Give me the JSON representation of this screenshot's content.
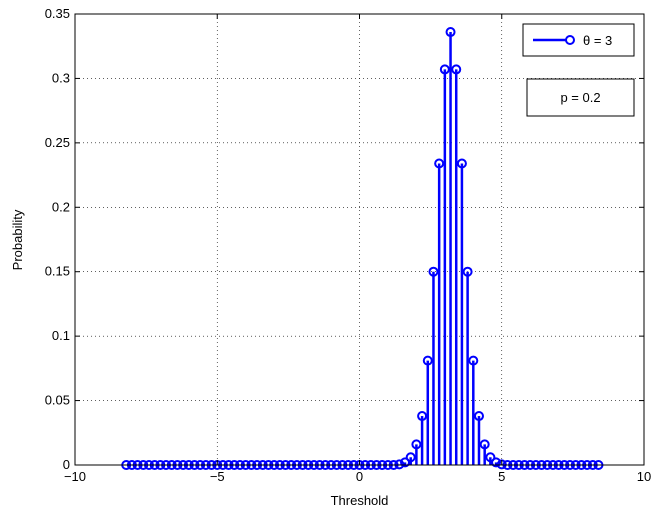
{
  "chart_data": {
    "type": "stem",
    "title": "",
    "xlabel": "Threshold",
    "ylabel": "Probability",
    "xlim": [
      -10,
      10
    ],
    "ylim": [
      0,
      0.35
    ],
    "x_ticks": [
      -10,
      -5,
      0,
      5,
      10
    ],
    "x_tick_labels": [
      "−10",
      "−5",
      "0",
      "5",
      "10"
    ],
    "y_ticks": [
      0,
      0.05,
      0.1,
      0.15,
      0.2,
      0.25,
      0.3,
      0.35
    ],
    "y_tick_labels": [
      "0",
      "0.05",
      "0.1",
      "0.15",
      "0.2",
      "0.25",
      "0.3",
      "0.35"
    ],
    "grid": true,
    "grid_style": "dotted",
    "legend_position": "top-right",
    "series": [
      {
        "name": "θ = 3",
        "color": "#0000ff",
        "marker": "open-circle",
        "x": [
          -8.2,
          -8.0,
          -7.8,
          -7.6,
          -7.4,
          -7.2,
          -7.0,
          -6.8,
          -6.6,
          -6.4,
          -6.2,
          -6.0,
          -5.8,
          -5.6,
          -5.4,
          -5.2,
          -5.0,
          -4.8,
          -4.6,
          -4.4,
          -4.2,
          -4.0,
          -3.8,
          -3.6,
          -3.4,
          -3.2,
          -3.0,
          -2.8,
          -2.6,
          -2.4,
          -2.2,
          -2.0,
          -1.8,
          -1.6,
          -1.4,
          -1.2,
          -1.0,
          -0.8,
          -0.6,
          -0.4,
          -0.2,
          0.0,
          0.2,
          0.4,
          0.6,
          0.8,
          1.0,
          1.2,
          1.4,
          1.6,
          1.8,
          2.0,
          2.2,
          2.4,
          2.6,
          2.8,
          3.0,
          3.2,
          3.4,
          3.6,
          3.8,
          4.0,
          4.2,
          4.4,
          4.6,
          4.8,
          5.0,
          5.2,
          5.4,
          5.6,
          5.8,
          6.0,
          6.2,
          6.4,
          6.6,
          6.8,
          7.0,
          7.2,
          7.4,
          7.6,
          7.8,
          8.0,
          8.2,
          8.4
        ],
        "y": [
          0,
          0,
          0,
          0,
          0,
          0,
          0,
          0,
          0,
          0,
          0,
          0,
          0,
          0,
          0,
          0,
          0,
          0,
          0,
          0,
          0,
          0,
          0,
          0,
          0,
          0,
          0,
          0,
          0,
          0,
          0,
          0,
          0,
          0,
          0,
          0,
          0,
          0,
          0,
          0,
          0,
          0,
          0,
          0,
          0,
          0,
          0,
          0,
          0.0005,
          0.002,
          0.006,
          0.016,
          0.038,
          0.081,
          0.15,
          0.234,
          0.307,
          0.336,
          0.307,
          0.234,
          0.15,
          0.081,
          0.038,
          0.016,
          0.006,
          0.002,
          0.0005,
          0,
          0,
          0,
          0,
          0,
          0,
          0,
          0,
          0,
          0,
          0,
          0,
          0,
          0,
          0,
          0,
          0
        ]
      }
    ],
    "annotations": [
      {
        "text": "p = 0.2"
      }
    ]
  }
}
